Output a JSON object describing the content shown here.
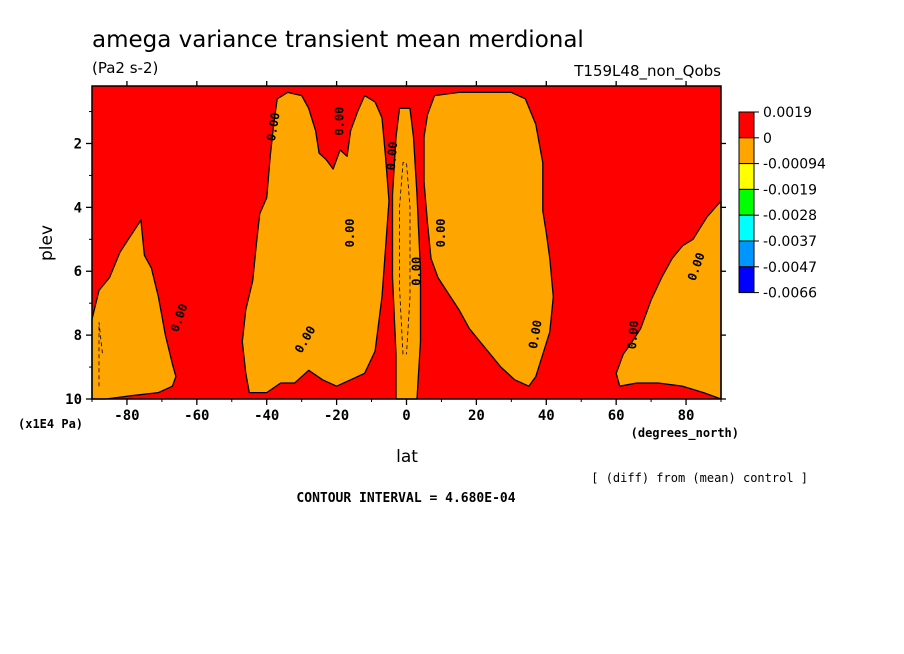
{
  "chart_data": {
    "type": "heatmap",
    "title": "amega variance transient mean merdional",
    "units": "(Pa2 s-2)",
    "run_label": "T159L48_non_Qobs",
    "xlabel": "lat",
    "xunits": "(degrees_north)",
    "ylabel": "plev",
    "yunits": "(x1E4 Pa)",
    "xlim": [
      -90,
      90
    ],
    "ylim": [
      10,
      0.2
    ],
    "x_ticks": [
      -80,
      -60,
      -40,
      -20,
      0,
      20,
      40,
      60,
      80
    ],
    "y_ticks": [
      2,
      4,
      6,
      8,
      10
    ],
    "legend": {
      "placement": "right",
      "levels": [
        "0.0019",
        "0",
        "-0.00094",
        "-0.0019",
        "-0.0028",
        "-0.0037",
        "-0.0047",
        "-0.0066"
      ],
      "colors": [
        "#ff0000",
        "#ffa500",
        "#ffff00",
        "#00ff00",
        "#00ffff",
        "#0096ff",
        "#0000ff"
      ]
    },
    "background_color": "#ff0000",
    "series": [
      {
        "fill": "#ffa500",
        "points": [
          [
            -90,
            10
          ],
          [
            -90,
            7.5
          ],
          [
            -88,
            6.6
          ],
          [
            -85,
            6.2
          ],
          [
            -82,
            5.4
          ],
          [
            -79,
            4.9
          ],
          [
            -76,
            4.4
          ],
          [
            -75,
            5.5
          ],
          [
            -73,
            5.9
          ],
          [
            -71,
            6.8
          ],
          [
            -69,
            8.0
          ],
          [
            -67,
            8.9
          ],
          [
            -66,
            9.3
          ],
          [
            -67,
            9.6
          ],
          [
            -71,
            9.8
          ],
          [
            -79,
            9.9
          ],
          [
            -86,
            10
          ]
        ]
      },
      {
        "fill": "#ffa500",
        "points": [
          [
            -45,
            9.8
          ],
          [
            -46,
            9.2
          ],
          [
            -47,
            8.2
          ],
          [
            -46,
            7.2
          ],
          [
            -44,
            6.3
          ],
          [
            -43,
            5.2
          ],
          [
            -42,
            4.2
          ],
          [
            -40,
            3.7
          ],
          [
            -39,
            2.4
          ],
          [
            -38,
            1.4
          ],
          [
            -37,
            0.6
          ],
          [
            -34,
            0.4
          ],
          [
            -30,
            0.5
          ],
          [
            -28,
            0.9
          ],
          [
            -26,
            1.6
          ],
          [
            -25,
            2.3
          ],
          [
            -23,
            2.5
          ],
          [
            -21,
            2.8
          ],
          [
            -19,
            2.2
          ],
          [
            -17,
            2.4
          ],
          [
            -16,
            1.6
          ],
          [
            -14,
            1.0
          ],
          [
            -12,
            0.5
          ],
          [
            -9,
            0.7
          ],
          [
            -7,
            1.2
          ],
          [
            -6,
            2.4
          ],
          [
            -5,
            3.8
          ],
          [
            -6,
            5.3
          ],
          [
            -7,
            6.8
          ],
          [
            -9,
            8.5
          ],
          [
            -12,
            9.2
          ],
          [
            -16,
            9.4
          ],
          [
            -20,
            9.6
          ],
          [
            -24,
            9.4
          ],
          [
            -28,
            9.1
          ],
          [
            -32,
            9.5
          ],
          [
            -36,
            9.5
          ],
          [
            -40,
            9.8
          ]
        ]
      },
      {
        "fill": "#ffa500",
        "points": [
          [
            -3,
            10
          ],
          [
            -3,
            8.6
          ],
          [
            -4,
            6.2
          ],
          [
            -4,
            3.6
          ],
          [
            -3,
            1.8
          ],
          [
            -2,
            0.9
          ],
          [
            1,
            0.9
          ],
          [
            2,
            1.8
          ],
          [
            3,
            3.6
          ],
          [
            4,
            6.0
          ],
          [
            4,
            8.2
          ],
          [
            3,
            10
          ]
        ]
      },
      {
        "fill": "#ffa500",
        "points": [
          [
            5,
            1.8
          ],
          [
            6,
            1.1
          ],
          [
            8,
            0.5
          ],
          [
            15,
            0.4
          ],
          [
            22,
            0.4
          ],
          [
            30,
            0.4
          ],
          [
            34,
            0.6
          ],
          [
            37,
            1.4
          ],
          [
            39,
            2.6
          ],
          [
            39,
            4.1
          ],
          [
            40,
            4.8
          ],
          [
            41,
            5.6
          ],
          [
            42,
            6.8
          ],
          [
            41,
            7.9
          ],
          [
            39,
            8.6
          ],
          [
            37,
            9.3
          ],
          [
            35,
            9.6
          ],
          [
            31,
            9.4
          ],
          [
            27,
            9.0
          ],
          [
            24,
            8.6
          ],
          [
            21,
            8.2
          ],
          [
            18,
            7.8
          ],
          [
            15,
            7.2
          ],
          [
            12,
            6.7
          ],
          [
            9,
            6.2
          ],
          [
            7,
            5.6
          ],
          [
            6,
            4.5
          ],
          [
            5,
            3.2
          ]
        ]
      },
      {
        "fill": "#ffa500",
        "points": [
          [
            60,
            9.2
          ],
          [
            62,
            8.6
          ],
          [
            64,
            8.3
          ],
          [
            67,
            7.8
          ],
          [
            70,
            6.9
          ],
          [
            73,
            6.2
          ],
          [
            76,
            5.6
          ],
          [
            79,
            5.2
          ],
          [
            82,
            5.0
          ],
          [
            86,
            4.3
          ],
          [
            90,
            3.8
          ],
          [
            90,
            10
          ],
          [
            85,
            9.8
          ],
          [
            79,
            9.6
          ],
          [
            72,
            9.5
          ],
          [
            66,
            9.5
          ],
          [
            61,
            9.6
          ]
        ]
      }
    ],
    "contour_labels": [
      "0.00",
      "0.00",
      "0.00",
      "0.00",
      "0.00",
      "0.00",
      "0.00",
      "0.00",
      "0.00",
      "0.00",
      "0.00"
    ],
    "annotation_right": "[ (diff) from (mean) control ]",
    "contour_interval": "CONTOUR INTERVAL = 4.680E-04"
  }
}
